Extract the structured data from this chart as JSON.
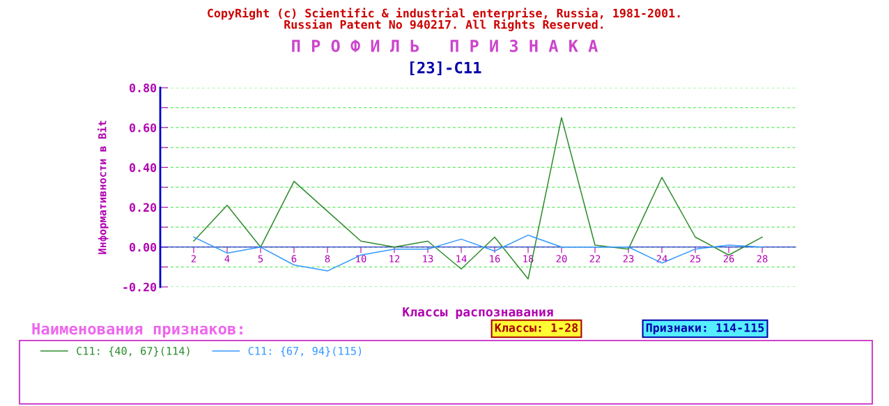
{
  "chart_data": {
    "type": "line",
    "title": "П Р О Ф И Л Ь   П Р И З Н А К А",
    "subtitle": "[23]-C11",
    "xlabel": "Классы распознавания",
    "ylabel": "Информативности в Bit",
    "categories": [
      "2",
      "4",
      "5",
      "6",
      "8",
      "10",
      "12",
      "13",
      "14",
      "16",
      "18",
      "20",
      "22",
      "23",
      "24",
      "25",
      "26",
      "28"
    ],
    "series": [
      {
        "name": "C11: {40, 67}(114)",
        "color": "#2e8b2e",
        "values": [
          0.03,
          0.21,
          0.0,
          0.33,
          0.18,
          0.03,
          0.0,
          0.03,
          -0.11,
          0.05,
          -0.16,
          0.65,
          0.01,
          -0.01,
          0.35,
          0.05,
          -0.04,
          0.05
        ]
      },
      {
        "name": "C11: {67, 94}(115)",
        "color": "#3399ff",
        "values": [
          0.05,
          -0.03,
          0.0,
          -0.09,
          -0.12,
          -0.04,
          -0.01,
          -0.01,
          0.04,
          -0.02,
          0.06,
          0.0,
          0.0,
          0.0,
          -0.08,
          -0.01,
          0.01,
          0.0
        ]
      }
    ],
    "ylim": [
      -0.2,
      0.8
    ],
    "yticks": [
      {
        "value": -0.2,
        "label": "-0.20"
      },
      {
        "value": -0.1,
        "label": null
      },
      {
        "value": 0.0,
        "label": "0.00"
      },
      {
        "value": 0.1,
        "label": null
      },
      {
        "value": 0.2,
        "label": "0.20"
      },
      {
        "value": 0.3,
        "label": null
      },
      {
        "value": 0.4,
        "label": "0.40"
      },
      {
        "value": 0.5,
        "label": null
      },
      {
        "value": 0.6,
        "label": "0.60"
      },
      {
        "value": 0.7,
        "label": null
      },
      {
        "value": 0.8,
        "label": "0.80"
      }
    ],
    "grid": "y",
    "marker": "none",
    "line_style": "solid",
    "legend": "bottom",
    "annotations": [
      "CopyRight (c) Scientific & industrial enterprise, Russia, 1981-2001.\nRussian Patent No 940217. All Rights Reserved.",
      "Наименования признаков:",
      "Классы: 1-28",
      "Признаки: 114-115"
    ]
  }
}
